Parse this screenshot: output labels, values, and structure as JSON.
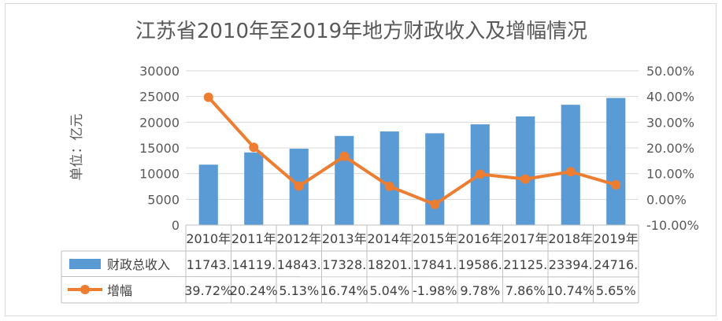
{
  "chart_data": {
    "type": "bar",
    "title": "江苏省2010年至2019年地方财政收入及增幅情况",
    "ylabel": "单位：亿元",
    "categories": [
      "2010年",
      "2011年",
      "2012年",
      "2013年",
      "2014年",
      "2015年",
      "2016年",
      "2017年",
      "2018年",
      "2019年"
    ],
    "ylim": [
      0,
      30000
    ],
    "y_ticks": [
      "0",
      "5000",
      "10000",
      "15000",
      "20000",
      "25000",
      "30000"
    ],
    "y2lim": [
      -0.1,
      0.5
    ],
    "y2_ticks": [
      "-10.00%",
      "0.00%",
      "10.00%",
      "20.00%",
      "30.00%",
      "40.00%",
      "50.00%"
    ],
    "grid": true,
    "legend": "data-table",
    "series": [
      {
        "name": "财政总收入",
        "type": "bar",
        "axis": "left",
        "color": "#5b9bd5",
        "values": [
          11743,
          14119,
          14843,
          17328,
          18201,
          17841,
          19586,
          21125,
          23394,
          24716
        ],
        "table_labels": [
          "11743.",
          "14119.",
          "14843.",
          "17328.",
          "18201.",
          "17841.",
          "19586.",
          "21125.",
          "23394.",
          "24716."
        ]
      },
      {
        "name": "增幅",
        "type": "line",
        "axis": "right",
        "color": "#ed7d31",
        "values": [
          0.3972,
          0.2024,
          0.0513,
          0.1674,
          0.0504,
          -0.0198,
          0.0978,
          0.0786,
          0.1074,
          0.0565
        ],
        "table_labels": [
          "39.72%",
          "20.24%",
          "5.13%",
          "16.74%",
          "5.04%",
          "-1.98%",
          "9.78%",
          "7.86%",
          "10.74%",
          "5.65%"
        ]
      }
    ]
  }
}
